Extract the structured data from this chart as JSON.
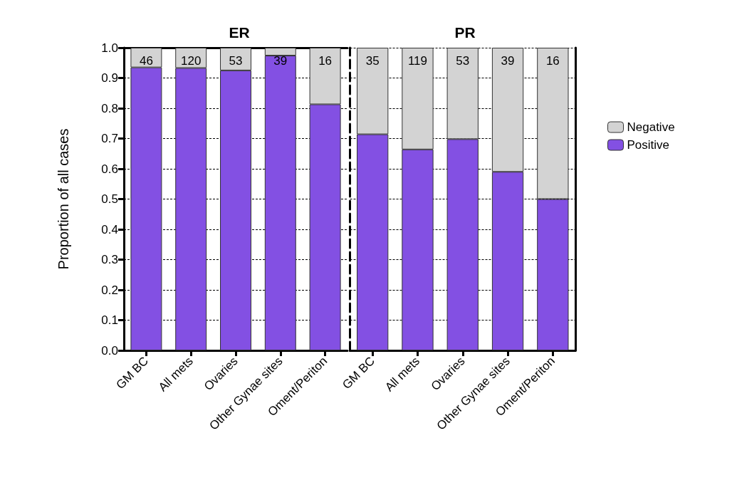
{
  "chart_data": [
    {
      "type": "bar",
      "title": "ER",
      "ylabel": "Proportion of all cases",
      "categories": [
        "GM BC",
        "All mets",
        "Ovaries",
        "Other Gynae sites",
        "Oment/Periton"
      ],
      "stacked": true,
      "series": [
        {
          "color": "#8350e3",
          "values": [
            0.935,
            0.933,
            0.925,
            0.974,
            0.813
          ]
        },
        {
          "color": "#d3d3d3",
          "values": [
            0.065,
            0.067,
            0.075,
            0.026,
            0.187
          ]
        }
      ],
      "annotations": [
        {
          "text": "46",
          "x": "GM BC",
          "y": 1
        },
        {
          "text": "120",
          "x": "All mets",
          "y": 1
        },
        {
          "text": "53",
          "x": "Ovaries",
          "y": 1
        },
        {
          "text": "39",
          "x": "Other Gynae sites",
          "y": 1
        },
        {
          "text": "16",
          "x": "Oment/Periton",
          "y": 1
        }
      ],
      "ylim": [
        0,
        1
      ],
      "yticks": [
        {
          "value": 0,
          "label": "0.0"
        },
        {
          "value": 0.1,
          "label": "0.1"
        },
        {
          "value": 0.2,
          "label": "0.2"
        },
        {
          "value": 0.3,
          "label": "0.3"
        },
        {
          "value": 0.4,
          "label": "0.4"
        },
        {
          "value": 0.5,
          "label": "0.5"
        },
        {
          "value": 0.6,
          "label": "0.6"
        },
        {
          "value": 0.7,
          "label": "0.7"
        },
        {
          "value": 0.8,
          "label": "0.8"
        },
        {
          "value": 0.9,
          "label": "0.9"
        },
        {
          "value": 1,
          "label": "1.0"
        }
      ],
      "grid": "y"
    },
    {
      "type": "bar",
      "title": "PR",
      "categories": [
        "GM BC",
        "All mets",
        "Ovaries",
        "Other Gynae sites",
        "Oment/Periton"
      ],
      "stacked": true,
      "series": [
        {
          "name": "Positive",
          "color": "#8350e3",
          "values": [
            0.714,
            0.664,
            0.698,
            0.59,
            0.5
          ]
        },
        {
          "name": "Negative",
          "color": "#d3d3d3",
          "values": [
            0.286,
            0.336,
            0.302,
            0.41,
            0.5
          ]
        }
      ],
      "annotations": [
        {
          "text": "35",
          "x": "GM BC",
          "y": 1
        },
        {
          "text": "119",
          "x": "All mets",
          "y": 1
        },
        {
          "text": "53",
          "x": "Ovaries",
          "y": 1
        },
        {
          "text": "39",
          "x": "Other Gynae sites",
          "y": 1
        },
        {
          "text": "16",
          "x": "Oment/Periton",
          "y": 1
        }
      ],
      "ylim": [
        0,
        1
      ],
      "yticks": [
        0,
        0.1,
        0.2,
        0.3,
        0.4,
        0.5,
        0.6,
        0.7,
        0.8,
        0.9,
        1
      ],
      "grid": "y",
      "tick_labels": "x",
      "legend": "right"
    }
  ]
}
